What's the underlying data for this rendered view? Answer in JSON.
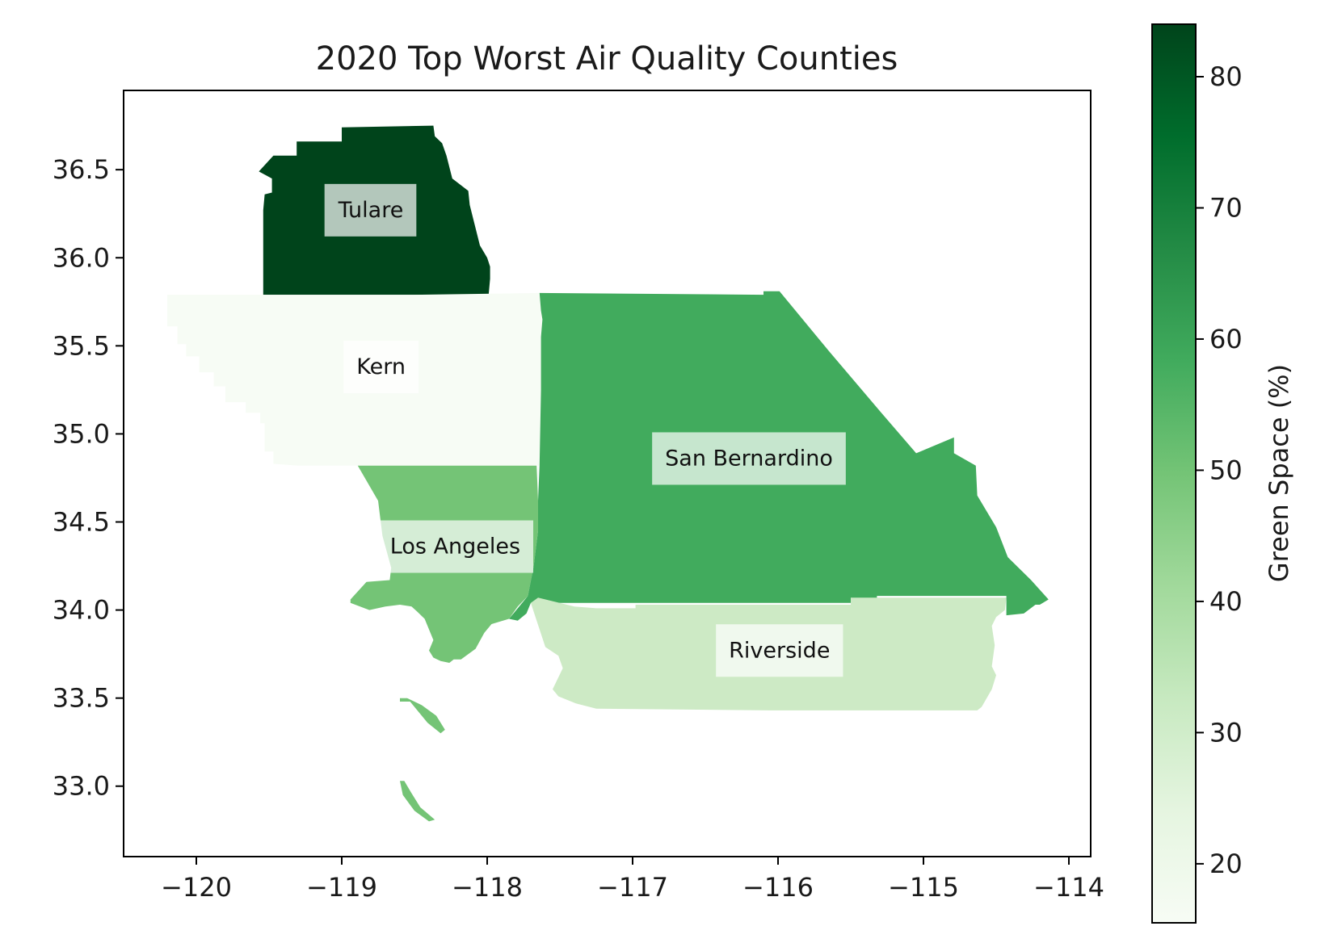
{
  "chart_data": {
    "type": "choropleth",
    "title": "2020 Top Worst Air Quality Counties",
    "xlabel": "",
    "ylabel": "",
    "xlim": [
      -120.5,
      -113.85
    ],
    "ylim": [
      32.6,
      36.95
    ],
    "x_ticks": [
      -120,
      -119,
      -118,
      -117,
      -116,
      -115,
      -114
    ],
    "x_tick_labels": [
      "−120",
      "−119",
      "−118",
      "−117",
      "−116",
      "−115",
      "−114"
    ],
    "y_ticks": [
      33.0,
      33.5,
      34.0,
      34.5,
      35.0,
      35.5,
      36.0,
      36.5
    ],
    "y_tick_labels": [
      "33.0",
      "33.5",
      "34.0",
      "34.5",
      "35.0",
      "35.5",
      "36.0",
      "36.5"
    ],
    "colorbar": {
      "label": "Green Space (%)",
      "colormap": "Greens",
      "range": [
        15.5,
        84
      ],
      "ticks": [
        20,
        30,
        40,
        50,
        60,
        70,
        80
      ],
      "tick_labels": [
        "20",
        "30",
        "40",
        "50",
        "60",
        "70",
        "80"
      ]
    },
    "regions": [
      {
        "name": "Tulare",
        "value": 84,
        "color": "#00441b",
        "label": {
          "text": "Tulare",
          "lon": -118.8,
          "lat": 36.27
        },
        "shapes": [
          [
            [
              -119.57,
              36.49
            ],
            [
              -119.47,
              36.58
            ],
            [
              -119.31,
              36.58
            ],
            [
              -119.31,
              36.66
            ],
            [
              -119.0,
              36.66
            ],
            [
              -119.0,
              36.74
            ],
            [
              -118.37,
              36.75
            ],
            [
              -118.36,
              36.69
            ],
            [
              -118.31,
              36.65
            ],
            [
              -118.28,
              36.58
            ],
            [
              -118.24,
              36.45
            ],
            [
              -118.13,
              36.38
            ],
            [
              -118.12,
              36.3
            ],
            [
              -118.05,
              36.07
            ],
            [
              -118.0,
              36.0
            ],
            [
              -117.98,
              35.95
            ],
            [
              -117.98,
              35.88
            ],
            [
              -117.99,
              35.79
            ],
            [
              -118.5,
              35.79
            ],
            [
              -119.54,
              35.79
            ],
            [
              -119.54,
              36.27
            ],
            [
              -119.53,
              36.36
            ],
            [
              -119.48,
              36.37
            ],
            [
              -119.48,
              36.45
            ]
          ]
        ]
      },
      {
        "name": "Kern",
        "value": 16,
        "color": "#f7fcf5",
        "label": {
          "text": "Kern",
          "lon": -118.73,
          "lat": 35.38
        },
        "shapes": [
          [
            [
              -120.2,
              35.79
            ],
            [
              -118.5,
              35.79
            ],
            [
              -117.64,
              35.8
            ],
            [
              -117.63,
              35.7
            ],
            [
              -117.62,
              35.65
            ],
            [
              -117.63,
              35.55
            ],
            [
              -117.63,
              35.25
            ],
            [
              -117.64,
              34.82
            ],
            [
              -118.0,
              34.82
            ],
            [
              -118.89,
              34.82
            ],
            [
              -119.3,
              34.82
            ],
            [
              -119.47,
              34.83
            ],
            [
              -119.47,
              34.9
            ],
            [
              -119.53,
              34.9
            ],
            [
              -119.53,
              35.06
            ],
            [
              -119.56,
              35.06
            ],
            [
              -119.56,
              35.12
            ],
            [
              -119.66,
              35.12
            ],
            [
              -119.66,
              35.18
            ],
            [
              -119.8,
              35.18
            ],
            [
              -119.8,
              35.27
            ],
            [
              -119.88,
              35.27
            ],
            [
              -119.88,
              35.35
            ],
            [
              -119.98,
              35.35
            ],
            [
              -119.98,
              35.44
            ],
            [
              -120.07,
              35.44
            ],
            [
              -120.07,
              35.51
            ],
            [
              -120.13,
              35.51
            ],
            [
              -120.13,
              35.61
            ],
            [
              -120.2,
              35.61
            ]
          ]
        ]
      },
      {
        "name": "Los Angeles",
        "value": 49,
        "color": "#74c476",
        "label": {
          "text": "Los Angeles",
          "lon": -118.22,
          "lat": 34.36
        },
        "shapes": [
          [
            [
              -118.89,
              34.82
            ],
            [
              -117.66,
              34.82
            ],
            [
              -117.65,
              34.62
            ],
            [
              -117.65,
              34.45
            ],
            [
              -117.68,
              34.25
            ],
            [
              -117.72,
              34.08
            ],
            [
              -117.79,
              34.02
            ],
            [
              -117.85,
              33.95
            ],
            [
              -117.97,
              33.92
            ],
            [
              -118.02,
              33.87
            ],
            [
              -118.08,
              33.78
            ],
            [
              -118.18,
              33.72
            ],
            [
              -118.23,
              33.72
            ],
            [
              -118.26,
              33.7
            ],
            [
              -118.32,
              33.71
            ],
            [
              -118.37,
              33.73
            ],
            [
              -118.4,
              33.77
            ],
            [
              -118.37,
              33.83
            ],
            [
              -118.43,
              33.95
            ],
            [
              -118.48,
              33.99
            ],
            [
              -118.52,
              34.02
            ],
            [
              -118.6,
              34.03
            ],
            [
              -118.7,
              34.02
            ],
            [
              -118.81,
              34.0
            ],
            [
              -118.94,
              34.04
            ],
            [
              -118.94,
              34.06
            ],
            [
              -118.83,
              34.16
            ],
            [
              -118.67,
              34.17
            ],
            [
              -118.66,
              34.24
            ],
            [
              -118.72,
              34.42
            ],
            [
              -118.75,
              34.62
            ]
          ],
          [
            [
              -118.6,
              33.48
            ],
            [
              -118.53,
              33.48
            ],
            [
              -118.45,
              33.4
            ],
            [
              -118.41,
              33.36
            ],
            [
              -118.32,
              33.3
            ],
            [
              -118.29,
              33.32
            ],
            [
              -118.35,
              33.4
            ],
            [
              -118.45,
              33.46
            ],
            [
              -118.55,
              33.5
            ],
            [
              -118.6,
              33.5
            ]
          ],
          [
            [
              -118.6,
              33.03
            ],
            [
              -118.57,
              33.03
            ],
            [
              -118.52,
              32.96
            ],
            [
              -118.46,
              32.88
            ],
            [
              -118.36,
              32.81
            ],
            [
              -118.4,
              32.8
            ],
            [
              -118.5,
              32.86
            ],
            [
              -118.58,
              32.95
            ]
          ]
        ]
      },
      {
        "name": "San Bernardino",
        "value": 60,
        "color": "#41ab5d",
        "label": {
          "text": "San Bernardino",
          "lon": -116.2,
          "lat": 34.86
        },
        "shapes": [
          [
            [
              -117.64,
              35.8
            ],
            [
              -116.1,
              35.79
            ],
            [
              -116.1,
              35.81
            ],
            [
              -115.99,
              35.81
            ],
            [
              -115.65,
              35.47
            ],
            [
              -115.3,
              35.13
            ],
            [
              -115.05,
              34.89
            ],
            [
              -114.79,
              34.98
            ],
            [
              -114.79,
              34.89
            ],
            [
              -114.64,
              34.82
            ],
            [
              -114.63,
              34.65
            ],
            [
              -114.5,
              34.47
            ],
            [
              -114.42,
              34.3
            ],
            [
              -114.26,
              34.17
            ],
            [
              -114.14,
              34.06
            ],
            [
              -114.2,
              34.03
            ],
            [
              -114.23,
              34.03
            ],
            [
              -114.31,
              33.98
            ],
            [
              -114.43,
              33.97
            ],
            [
              -114.43,
              34.08
            ],
            [
              -115.32,
              34.08
            ],
            [
              -115.32,
              34.04
            ],
            [
              -117.7,
              34.04
            ],
            [
              -117.73,
              33.98
            ],
            [
              -117.79,
              33.94
            ],
            [
              -117.85,
              33.95
            ],
            [
              -117.8,
              34.0
            ],
            [
              -117.72,
              34.08
            ],
            [
              -117.68,
              34.25
            ],
            [
              -117.65,
              34.45
            ],
            [
              -117.65,
              34.62
            ],
            [
              -117.64,
              34.82
            ],
            [
              -117.63,
              35.25
            ],
            [
              -117.63,
              35.55
            ],
            [
              -117.62,
              35.65
            ],
            [
              -117.63,
              35.7
            ]
          ]
        ]
      },
      {
        "name": "Riverside",
        "value": 29,
        "color": "#cdeac5",
        "label": {
          "text": "Riverside",
          "lon": -115.99,
          "lat": 33.77
        },
        "shapes": [
          [
            [
              -117.7,
              34.04
            ],
            [
              -117.65,
              34.07
            ],
            [
              -117.4,
              34.02
            ],
            [
              -117.4,
              34.02
            ],
            [
              -117.25,
              34.01
            ],
            [
              -116.98,
              34.01
            ],
            [
              -116.98,
              34.03
            ],
            [
              -115.5,
              34.03
            ],
            [
              -115.5,
              34.07
            ],
            [
              -114.43,
              34.07
            ],
            [
              -114.44,
              34.0
            ],
            [
              -114.5,
              33.96
            ],
            [
              -114.53,
              33.91
            ],
            [
              -114.51,
              33.8
            ],
            [
              -114.53,
              33.68
            ],
            [
              -114.5,
              33.63
            ],
            [
              -114.53,
              33.55
            ],
            [
              -114.6,
              33.45
            ],
            [
              -114.63,
              33.43
            ],
            [
              -116.05,
              33.43
            ],
            [
              -117.25,
              33.44
            ],
            [
              -117.39,
              33.47
            ],
            [
              -117.51,
              33.51
            ],
            [
              -117.55,
              33.55
            ],
            [
              -117.48,
              33.67
            ],
            [
              -117.51,
              33.74
            ],
            [
              -117.6,
              33.79
            ]
          ]
        ]
      }
    ]
  }
}
